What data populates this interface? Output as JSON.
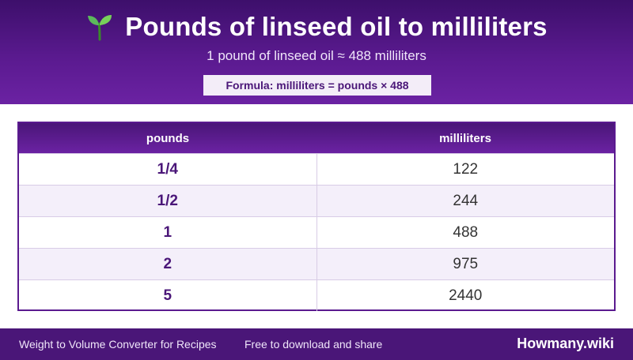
{
  "header": {
    "icon": "sprout-icon",
    "title": "Pounds of linseed oil to milliliters",
    "subtitle": "1 pound of linseed oil ≈ 488 milliliters",
    "formula": "Formula: milliliters = pounds × 488"
  },
  "table": {
    "columns": [
      "pounds",
      "milliliters"
    ],
    "rows": [
      {
        "pounds": "1/4",
        "milliliters": "122"
      },
      {
        "pounds": "1/2",
        "milliliters": "244"
      },
      {
        "pounds": "1",
        "milliliters": "488"
      },
      {
        "pounds": "2",
        "milliliters": "975"
      },
      {
        "pounds": "5",
        "milliliters": "2440"
      }
    ]
  },
  "footer": {
    "left_text": "Weight to Volume Converter for Recipes",
    "mid_text": "Free to download and share",
    "brand": "Howmany.wiki"
  },
  "colors": {
    "primary": "#5a1a8f",
    "header_dark": "#3d0f6b",
    "row_alt": "#f4effa",
    "sprout_green": "#5cb85c"
  }
}
